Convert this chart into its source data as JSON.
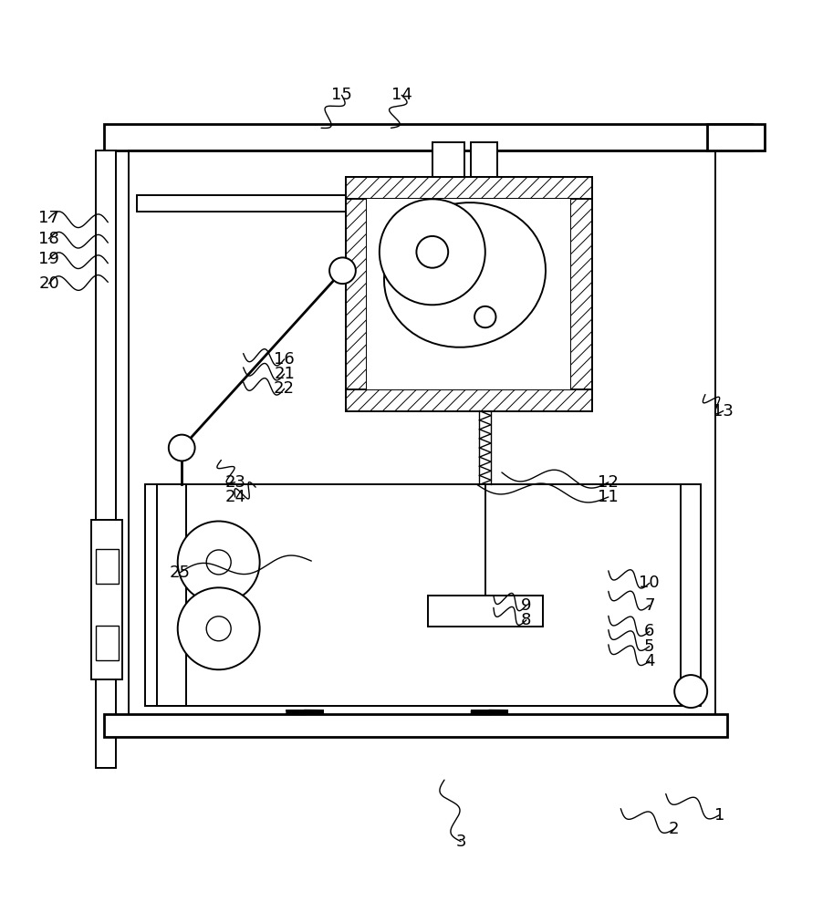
{
  "bg_color": "#ffffff",
  "line_color": "#000000",
  "figsize": [
    9.02,
    10.0
  ],
  "dpi": 100,
  "label_fs": 13,
  "label_positions": {
    "1": [
      0.875,
      0.062,
      0.81,
      0.088
    ],
    "2": [
      0.82,
      0.045,
      0.755,
      0.07
    ],
    "3": [
      0.56,
      0.03,
      0.54,
      0.105
    ],
    "4": [
      0.79,
      0.25,
      0.74,
      0.27
    ],
    "5": [
      0.79,
      0.268,
      0.74,
      0.288
    ],
    "6": [
      0.79,
      0.286,
      0.74,
      0.305
    ],
    "7": [
      0.79,
      0.318,
      0.74,
      0.335
    ],
    "8": [
      0.64,
      0.3,
      0.6,
      0.315
    ],
    "9": [
      0.64,
      0.318,
      0.6,
      0.33
    ],
    "10": [
      0.79,
      0.345,
      0.74,
      0.36
    ],
    "11": [
      0.74,
      0.45,
      0.58,
      0.465
    ],
    "12": [
      0.74,
      0.468,
      0.61,
      0.48
    ],
    "13": [
      0.88,
      0.555,
      0.858,
      0.575
    ],
    "14": [
      0.488,
      0.94,
      0.475,
      0.9
    ],
    "15": [
      0.415,
      0.94,
      0.39,
      0.9
    ],
    "16": [
      0.345,
      0.618,
      0.295,
      0.625
    ],
    "17": [
      0.058,
      0.79,
      0.13,
      0.785
    ],
    "18": [
      0.058,
      0.765,
      0.13,
      0.76
    ],
    "19": [
      0.058,
      0.74,
      0.13,
      0.735
    ],
    "20": [
      0.058,
      0.71,
      0.13,
      0.712
    ],
    "21": [
      0.345,
      0.6,
      0.295,
      0.608
    ],
    "22": [
      0.345,
      0.582,
      0.295,
      0.59
    ],
    "23": [
      0.285,
      0.468,
      0.268,
      0.495
    ],
    "24": [
      0.285,
      0.45,
      0.31,
      0.462
    ],
    "25": [
      0.218,
      0.358,
      0.378,
      0.372
    ]
  }
}
